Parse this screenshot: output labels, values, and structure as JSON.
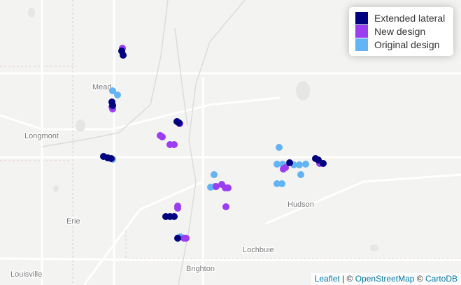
{
  "legend": [
    {
      "name": "Extended lateral",
      "color": "#000080"
    },
    {
      "name": "New design",
      "color": "#9b3df0"
    },
    {
      "name": "Original design",
      "color": "#63b4f5"
    }
  ],
  "places": [
    "Mead",
    "Longmont",
    "Erie",
    "Hudson",
    "Lochbuie",
    "Brighton",
    "Louisville"
  ],
  "attribution": {
    "leaflet": "Leaflet",
    "sep": "|",
    "copy1": "©",
    "osm": "OpenStreetMap",
    "copy2": "©",
    "carto": "CartoDB"
  }
}
